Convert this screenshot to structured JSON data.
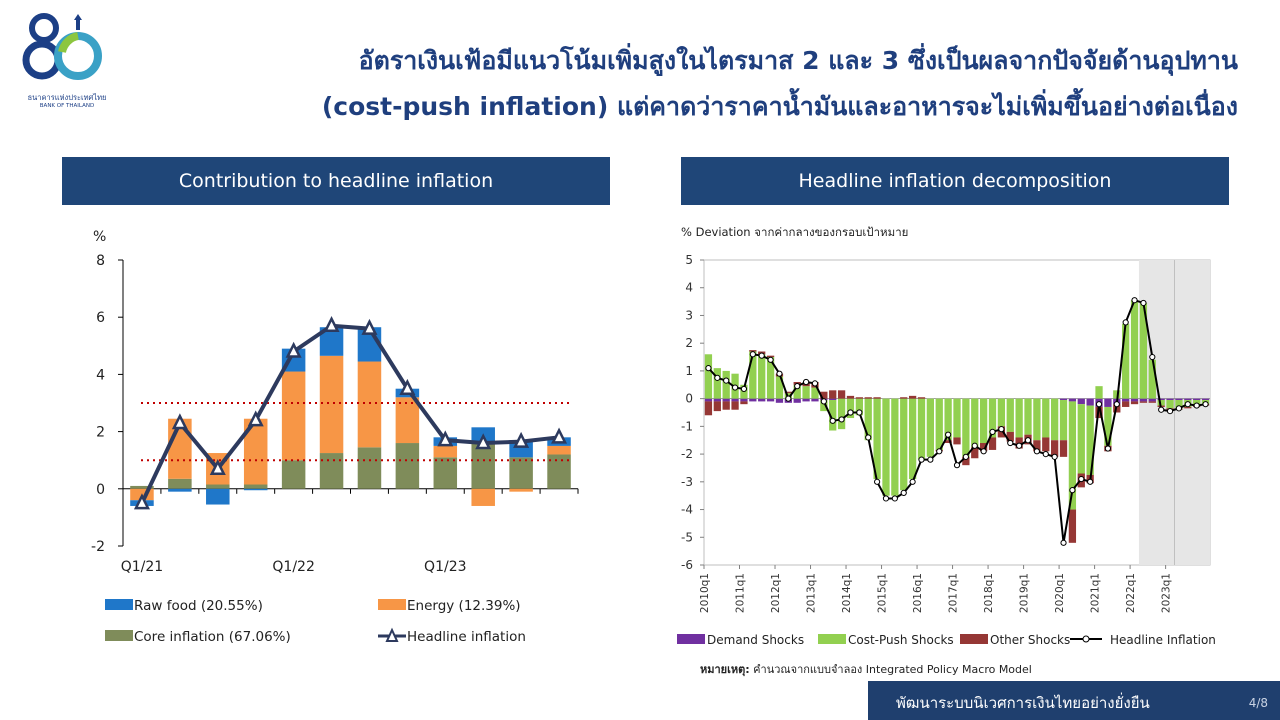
{
  "logo": {
    "numeral": "80",
    "text_th": "ธนาคารแห่งประเทศไทย",
    "text_en": "BANK OF THAILAND"
  },
  "slide": {
    "title_line1": "อัตราเงินเฟ้อมีแนวโน้มเพิ่มสูงในไตรมาส 2 และ 3 ซึ่งเป็นผลจากปัจจัยด้านอุปทาน",
    "title_line2": "(cost-push inflation) แต่คาดว่าราคาน้ำมันและอาหารจะไม่เพิ่มขึ้นอย่างต่อเนื่อง"
  },
  "left_panel": {
    "header": "Contribution to headline inflation"
  },
  "right_panel": {
    "header": "Headline inflation decomposition"
  },
  "footnote": {
    "label": "หมายเหตุ:",
    "text": " คำนวณจากแบบจำลอง Integrated Policy Macro Model"
  },
  "footer": {
    "text": "พัฒนาระบบนิเวศการเงินไทยอย่างยั่งยืน",
    "page": "4/8"
  },
  "colors": {
    "navy": "#1f4678",
    "raw_food": "#1f77c9",
    "energy": "#f79646",
    "core": "#7f8c5a",
    "headline": "#2d3a5e",
    "target_line": "#c00000",
    "demand": "#7030a0",
    "cost_push": "#92d050",
    "other": "#953735",
    "shade": "#e6e6e6"
  },
  "chart_data": [
    {
      "type": "bar",
      "stacked": true,
      "ylabel": "%",
      "ylim": [
        -2,
        8
      ],
      "yticks": [
        -2,
        0,
        2,
        4,
        6,
        8
      ],
      "x_tick_labels": [
        {
          "index": 0,
          "label": "Q1/21"
        },
        {
          "index": 4,
          "label": "Q1/22"
        },
        {
          "index": 8,
          "label": "Q1/23"
        }
      ],
      "categories": [
        "Q1/21",
        "Q2/21",
        "Q3/21",
        "Q4/21",
        "Q1/22",
        "Q2/22",
        "Q3/22",
        "Q4/22",
        "Q1/23",
        "Q2/23",
        "Q3/23",
        "Q4/23"
      ],
      "series": [
        {
          "name": "Raw food (20.55%)",
          "kind": "bar",
          "color": "#1f77c9",
          "values": [
            -0.2,
            -0.1,
            -0.55,
            -0.05,
            0.8,
            1.0,
            1.2,
            0.3,
            0.3,
            0.55,
            0.6,
            0.3
          ]
        },
        {
          "name": "Energy (12.39%)",
          "kind": "bar",
          "color": "#f79646",
          "values": [
            -0.4,
            2.1,
            1.1,
            2.3,
            3.1,
            3.4,
            3.0,
            1.6,
            0.4,
            -0.6,
            -0.1,
            0.3
          ]
        },
        {
          "name": "Core inflation (67.06%)",
          "kind": "bar",
          "color": "#7f8c5a",
          "values": [
            0.1,
            0.35,
            0.15,
            0.15,
            1.0,
            1.25,
            1.45,
            1.6,
            1.1,
            1.6,
            1.1,
            1.2
          ]
        },
        {
          "name": "Headline inflation",
          "kind": "line",
          "color": "#2d3a5e",
          "values": [
            -0.5,
            2.3,
            0.7,
            2.4,
            4.8,
            5.7,
            5.6,
            3.5,
            1.7,
            1.6,
            1.65,
            1.8
          ]
        }
      ],
      "target_band": {
        "upper": 3.0,
        "lower": 1.0
      }
    },
    {
      "type": "bar",
      "stacked": true,
      "ylabel": "% Deviation จากค่ากลางของกรอบเป้าหมาย",
      "ylim": [
        -6,
        5
      ],
      "yticks": [
        -6,
        -5,
        -4,
        -3,
        -2,
        -1,
        0,
        1,
        2,
        3,
        4,
        5
      ],
      "x_start": "2010q1",
      "x_tick_labels": [
        {
          "index": 0,
          "label": "2010q1"
        },
        {
          "index": 4,
          "label": "2011q1"
        },
        {
          "index": 8,
          "label": "2012q1"
        },
        {
          "index": 12,
          "label": "2013q1"
        },
        {
          "index": 16,
          "label": "2014q1"
        },
        {
          "index": 20,
          "label": "2015q1"
        },
        {
          "index": 24,
          "label": "2016q1"
        },
        {
          "index": 28,
          "label": "2017q1"
        },
        {
          "index": 32,
          "label": "2018q1"
        },
        {
          "index": 36,
          "label": "2019q1"
        },
        {
          "index": 40,
          "label": "2020q1"
        },
        {
          "index": 44,
          "label": "2021q1"
        },
        {
          "index": 48,
          "label": "2022q1"
        },
        {
          "index": 52,
          "label": "2023q1"
        }
      ],
      "shaded_from_index": 49,
      "shaded_split_index": 53,
      "series": [
        {
          "name": "Demand Shocks",
          "kind": "bar",
          "color": "#7030a0",
          "values": [
            -0.1,
            -0.1,
            -0.1,
            -0.1,
            -0.1,
            -0.1,
            -0.1,
            -0.1,
            -0.15,
            -0.15,
            -0.15,
            -0.1,
            -0.1,
            -0.05,
            -0.05,
            0,
            0,
            0,
            0,
            0,
            0,
            0,
            0,
            0,
            0,
            0,
            0,
            0,
            0,
            0,
            0,
            0,
            0,
            0,
            0,
            0,
            0,
            0,
            0,
            0,
            -0.05,
            -0.1,
            -0.2,
            -0.25,
            -0.3,
            -0.3,
            -0.2,
            -0.1,
            -0.1,
            -0.1,
            -0.1,
            -0.05,
            -0.05,
            -0.05,
            -0.05,
            -0.05,
            -0.05
          ]
        },
        {
          "name": "Cost-Push Shocks",
          "kind": "bar",
          "color": "#92d050",
          "values": [
            1.6,
            1.1,
            1.0,
            0.9,
            0.5,
            1.7,
            1.6,
            1.5,
            0.8,
            0.2,
            0.5,
            0.45,
            0.4,
            -0.4,
            -1.1,
            -1.1,
            -0.7,
            -0.6,
            -1.5,
            -2.9,
            -3.5,
            -3.5,
            -3.3,
            -2.9,
            -2.2,
            -2.1,
            -1.85,
            -1.5,
            -1.4,
            -2.1,
            -1.75,
            -1.6,
            -1.4,
            -1.0,
            -1.2,
            -1.4,
            -1.3,
            -1.5,
            -1.4,
            -1.5,
            -1.45,
            -3.9,
            -2.5,
            -2.5,
            0.45,
            -1.4,
            0.3,
            2.7,
            3.55,
            3.45,
            1.4,
            -0.2,
            -0.3,
            -0.3,
            -0.25,
            -0.2,
            -0.15
          ]
        },
        {
          "name": "Other Shocks",
          "kind": "bar",
          "color": "#953735",
          "values": [
            -0.5,
            -0.35,
            -0.3,
            -0.3,
            -0.1,
            0.05,
            0.1,
            0.05,
            0.1,
            0.05,
            0.1,
            0.1,
            0.2,
            0.25,
            0.3,
            0.3,
            0.1,
            0.05,
            0.05,
            0.05,
            0,
            0,
            0.05,
            0.1,
            0.05,
            0,
            -0.05,
            -0.1,
            -0.25,
            -0.3,
            -0.4,
            -0.3,
            -0.45,
            -0.4,
            -0.35,
            -0.4,
            -0.35,
            -0.4,
            -0.5,
            -0.6,
            -0.6,
            -1.2,
            -0.5,
            -0.3,
            -0.4,
            -0.2,
            -0.3,
            -0.2,
            -0.1,
            -0.05,
            -0.05,
            -0.05,
            -0.05,
            -0.05,
            -0.05,
            -0.05,
            -0.05
          ]
        },
        {
          "name": "Headline Inflation",
          "kind": "line",
          "color": "#000000",
          "values": [
            1.1,
            0.75,
            0.65,
            0.4,
            0.35,
            1.6,
            1.55,
            1.4,
            0.9,
            0.0,
            0.45,
            0.6,
            0.55,
            -0.1,
            -0.8,
            -0.75,
            -0.5,
            -0.5,
            -1.4,
            -3.0,
            -3.6,
            -3.6,
            -3.4,
            -3.0,
            -2.2,
            -2.2,
            -1.9,
            -1.3,
            -2.4,
            -2.1,
            -1.7,
            -1.9,
            -1.2,
            -1.1,
            -1.6,
            -1.7,
            -1.5,
            -1.9,
            -2.0,
            -2.1,
            -5.2,
            -3.3,
            -2.9,
            -3.0,
            -0.2,
            -1.8,
            -0.2,
            2.75,
            3.55,
            3.45,
            1.5,
            -0.4,
            -0.45,
            -0.35,
            -0.2,
            -0.25,
            -0.2
          ]
        }
      ]
    }
  ]
}
